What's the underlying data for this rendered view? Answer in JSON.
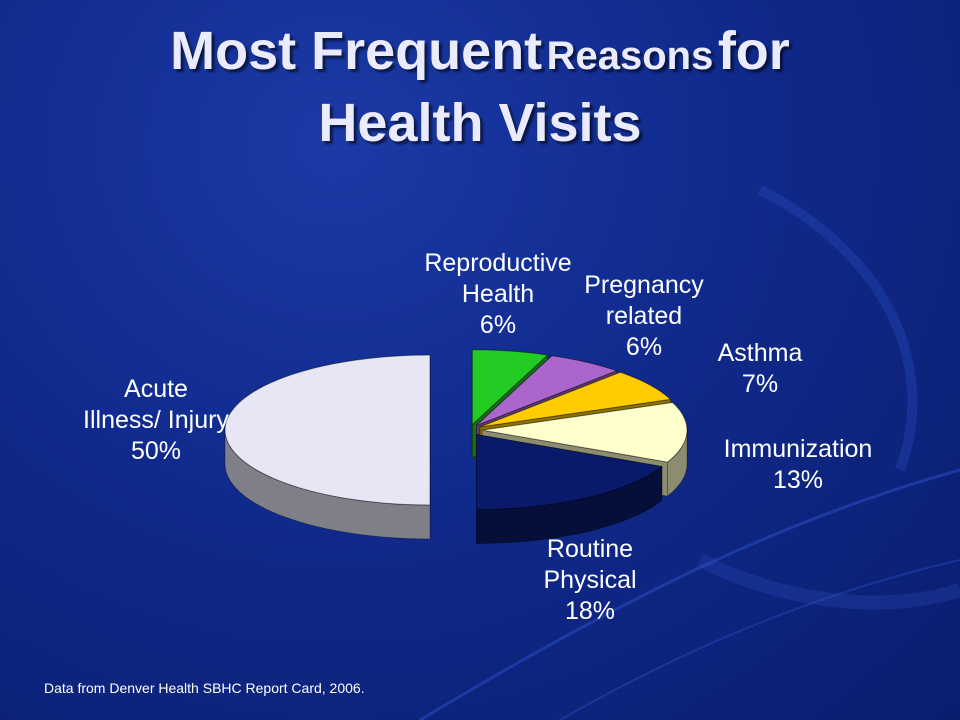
{
  "title": {
    "part1": "Most Frequent",
    "part2": "Reasons",
    "part3": "for",
    "line2": "Health Visits"
  },
  "source": "Data from Denver Health SBHC Report Card, 2006.",
  "chart_data": {
    "type": "pie",
    "style": "3d-exploded",
    "slices": [
      {
        "name": "Reproductive Health",
        "label_lines": [
          "Reproductive",
          "Health"
        ],
        "value": 6,
        "value_label": "6%",
        "color": "#22cc22"
      },
      {
        "name": "Pregnancy related",
        "label_lines": [
          "Pregnancy",
          "related"
        ],
        "value": 6,
        "value_label": "6%",
        "color": "#aa66cc"
      },
      {
        "name": "Asthma",
        "label_lines": [
          "Asthma"
        ],
        "value": 7,
        "value_label": "7%",
        "color": "#ffcc00"
      },
      {
        "name": "Immunization",
        "label_lines": [
          "Immunization"
        ],
        "value": 13,
        "value_label": "13%",
        "color": "#ffffcc"
      },
      {
        "name": "Routine Physical",
        "label_lines": [
          "Routine",
          "Physical"
        ],
        "value": 18,
        "value_label": "18%",
        "color": "#0a1a6a"
      },
      {
        "name": "Acute Illness/ Injury",
        "label_lines": [
          "Acute",
          "Illness/ Injury"
        ],
        "value": 50,
        "value_label": "50%",
        "color": "#e6e6f5"
      }
    ]
  }
}
